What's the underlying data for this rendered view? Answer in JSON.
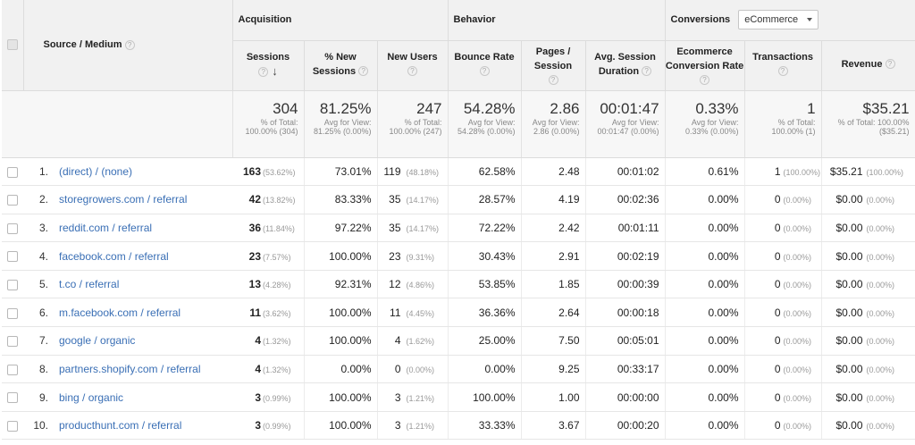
{
  "columns": {
    "source_medium": "Source / Medium",
    "groups": {
      "acquisition": "Acquisition",
      "behavior": "Behavior",
      "conversions": "Conversions"
    },
    "conversion_dropdown": "eCommerce",
    "sessions": "Sessions",
    "new_sessions": "% New Sessions",
    "new_users": "New Users",
    "bounce_rate": "Bounce Rate",
    "pages_session": "Pages / Session",
    "avg_duration": "Avg. Session Duration",
    "conv_rate": "Ecommerce Conversion Rate",
    "transactions": "Transactions",
    "revenue": "Revenue"
  },
  "totals": {
    "sessions": "304",
    "sessions_sub": "% of Total: 100.00% (304)",
    "new_sessions": "81.25%",
    "new_sessions_sub": "Avg for View: 81.25% (0.00%)",
    "new_users": "247",
    "new_users_sub": "% of Total: 100.00% (247)",
    "bounce_rate": "54.28%",
    "bounce_rate_sub": "Avg for View: 54.28% (0.00%)",
    "pages_session": "2.86",
    "pages_session_sub": "Avg for View: 2.86 (0.00%)",
    "avg_duration": "00:01:47",
    "avg_duration_sub": "Avg for View: 00:01:47 (0.00%)",
    "conv_rate": "0.33%",
    "conv_rate_sub": "Avg for View: 0.33% (0.00%)",
    "transactions": "1",
    "transactions_sub": "% of Total: 100.00% (1)",
    "revenue": "$35.21",
    "revenue_sub": "% of Total: 100.00% ($35.21)"
  },
  "rows": [
    {
      "idx": "1.",
      "source": "(direct) / (none)",
      "sessions": "163",
      "sessions_pct": "(53.62%)",
      "new_sessions": "73.01%",
      "new_users": "119",
      "new_users_pct": "(48.18%)",
      "bounce": "62.58%",
      "pages": "2.48",
      "duration": "00:01:02",
      "conv": "0.61%",
      "trans": "1",
      "trans_pct": "(100.00%)",
      "revenue": "$35.21",
      "revenue_pct": "(100.00%)"
    },
    {
      "idx": "2.",
      "source": "storegrowers.com / referral",
      "sessions": "42",
      "sessions_pct": "(13.82%)",
      "new_sessions": "83.33%",
      "new_users": "35",
      "new_users_pct": "(14.17%)",
      "bounce": "28.57%",
      "pages": "4.19",
      "duration": "00:02:36",
      "conv": "0.00%",
      "trans": "0",
      "trans_pct": "(0.00%)",
      "revenue": "$0.00",
      "revenue_pct": "(0.00%)"
    },
    {
      "idx": "3.",
      "source": "reddit.com / referral",
      "sessions": "36",
      "sessions_pct": "(11.84%)",
      "new_sessions": "97.22%",
      "new_users": "35",
      "new_users_pct": "(14.17%)",
      "bounce": "72.22%",
      "pages": "2.42",
      "duration": "00:01:11",
      "conv": "0.00%",
      "trans": "0",
      "trans_pct": "(0.00%)",
      "revenue": "$0.00",
      "revenue_pct": "(0.00%)"
    },
    {
      "idx": "4.",
      "source": "facebook.com / referral",
      "sessions": "23",
      "sessions_pct": "(7.57%)",
      "new_sessions": "100.00%",
      "new_users": "23",
      "new_users_pct": "(9.31%)",
      "bounce": "30.43%",
      "pages": "2.91",
      "duration": "00:02:19",
      "conv": "0.00%",
      "trans": "0",
      "trans_pct": "(0.00%)",
      "revenue": "$0.00",
      "revenue_pct": "(0.00%)"
    },
    {
      "idx": "5.",
      "source": "t.co / referral",
      "sessions": "13",
      "sessions_pct": "(4.28%)",
      "new_sessions": "92.31%",
      "new_users": "12",
      "new_users_pct": "(4.86%)",
      "bounce": "53.85%",
      "pages": "1.85",
      "duration": "00:00:39",
      "conv": "0.00%",
      "trans": "0",
      "trans_pct": "(0.00%)",
      "revenue": "$0.00",
      "revenue_pct": "(0.00%)"
    },
    {
      "idx": "6.",
      "source": "m.facebook.com / referral",
      "sessions": "11",
      "sessions_pct": "(3.62%)",
      "new_sessions": "100.00%",
      "new_users": "11",
      "new_users_pct": "(4.45%)",
      "bounce": "36.36%",
      "pages": "2.64",
      "duration": "00:00:18",
      "conv": "0.00%",
      "trans": "0",
      "trans_pct": "(0.00%)",
      "revenue": "$0.00",
      "revenue_pct": "(0.00%)"
    },
    {
      "idx": "7.",
      "source": "google / organic",
      "sessions": "4",
      "sessions_pct": "(1.32%)",
      "new_sessions": "100.00%",
      "new_users": "4",
      "new_users_pct": "(1.62%)",
      "bounce": "25.00%",
      "pages": "7.50",
      "duration": "00:05:01",
      "conv": "0.00%",
      "trans": "0",
      "trans_pct": "(0.00%)",
      "revenue": "$0.00",
      "revenue_pct": "(0.00%)"
    },
    {
      "idx": "8.",
      "source": "partners.shopify.com / referral",
      "sessions": "4",
      "sessions_pct": "(1.32%)",
      "new_sessions": "0.00%",
      "new_users": "0",
      "new_users_pct": "(0.00%)",
      "bounce": "0.00%",
      "pages": "9.25",
      "duration": "00:33:17",
      "conv": "0.00%",
      "trans": "0",
      "trans_pct": "(0.00%)",
      "revenue": "$0.00",
      "revenue_pct": "(0.00%)"
    },
    {
      "idx": "9.",
      "source": "bing / organic",
      "sessions": "3",
      "sessions_pct": "(0.99%)",
      "new_sessions": "100.00%",
      "new_users": "3",
      "new_users_pct": "(1.21%)",
      "bounce": "100.00%",
      "pages": "1.00",
      "duration": "00:00:00",
      "conv": "0.00%",
      "trans": "0",
      "trans_pct": "(0.00%)",
      "revenue": "$0.00",
      "revenue_pct": "(0.00%)"
    },
    {
      "idx": "10.",
      "source": "producthunt.com / referral",
      "sessions": "3",
      "sessions_pct": "(0.99%)",
      "new_sessions": "100.00%",
      "new_users": "3",
      "new_users_pct": "(1.21%)",
      "bounce": "33.33%",
      "pages": "3.67",
      "duration": "00:00:20",
      "conv": "0.00%",
      "trans": "0",
      "trans_pct": "(0.00%)",
      "revenue": "$0.00",
      "revenue_pct": "(0.00%)"
    }
  ]
}
